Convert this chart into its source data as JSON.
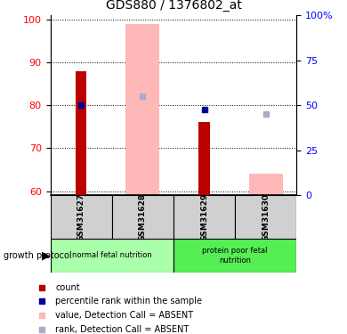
{
  "title": "GDS880 / 1376802_at",
  "samples": [
    "GSM31627",
    "GSM31628",
    "GSM31629",
    "GSM31630"
  ],
  "ylim_left": [
    59,
    101
  ],
  "ylim_right": [
    0,
    100
  ],
  "yticks_left": [
    60,
    70,
    80,
    90,
    100
  ],
  "yticks_right": [
    0,
    25,
    50,
    75,
    100
  ],
  "yright_labels": [
    "0",
    "25",
    "50",
    "75",
    "100%"
  ],
  "red_bars": [
    88,
    null,
    76,
    null
  ],
  "blue_dots": [
    80,
    null,
    79,
    null
  ],
  "pink_bars": [
    null,
    99,
    null,
    64
  ],
  "lavender_dots": [
    null,
    82,
    null,
    78
  ],
  "groups": [
    {
      "label": "normal fetal nutrition",
      "samples": [
        0,
        1
      ],
      "color": "#aaffaa"
    },
    {
      "label": "protein poor fetal\nnutrition",
      "samples": [
        2,
        3
      ],
      "color": "#55ee55"
    }
  ],
  "red_color": "#bb0000",
  "blue_color": "#000099",
  "pink_color": "#ffb8b8",
  "lavender_color": "#aaaacc",
  "sample_bg": "#d0d0d0",
  "legend_items": [
    {
      "label": "count",
      "color": "#bb0000"
    },
    {
      "label": "percentile rank within the sample",
      "color": "#000099"
    },
    {
      "label": "value, Detection Call = ABSENT",
      "color": "#ffb8b8"
    },
    {
      "label": "rank, Detection Call = ABSENT",
      "color": "#aaaacc"
    }
  ]
}
